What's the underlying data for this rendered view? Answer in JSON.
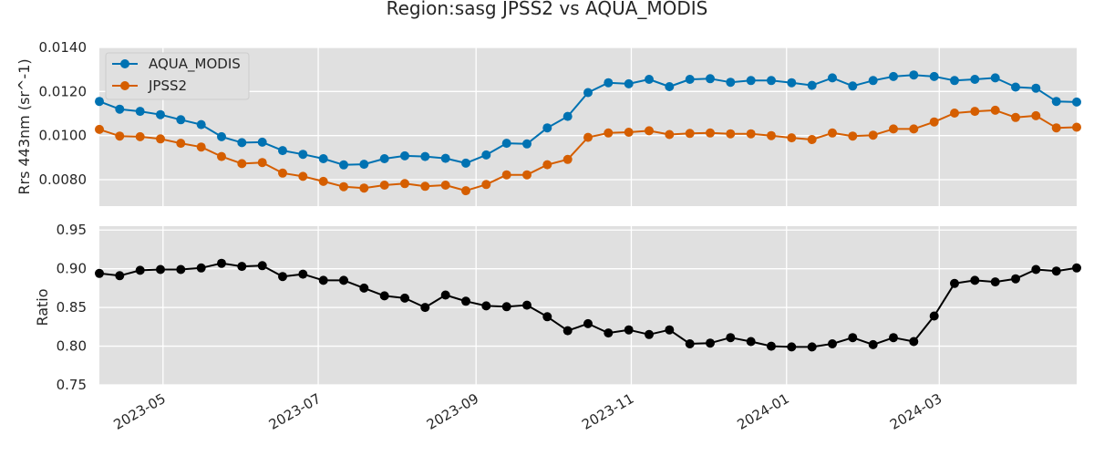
{
  "figure_title": "Region:sasg JPSS2 vs AQUA_MODIS",
  "chart_data": [
    {
      "type": "line",
      "title": "",
      "xlabel": "",
      "ylabel": "Rrs 443nm (sr^-1)",
      "ylim": [
        0.0068,
        0.014
      ],
      "yticks": [
        "0.0080",
        "0.0100",
        "0.0120",
        "0.0140"
      ],
      "grid": true,
      "legend": "top-left",
      "x": [
        "2023-04-06",
        "2023-04-14",
        "2023-04-22",
        "2023-04-30",
        "2023-05-08",
        "2023-05-16",
        "2023-05-24",
        "2023-06-01",
        "2023-06-09",
        "2023-06-17",
        "2023-06-25",
        "2023-07-03",
        "2023-07-11",
        "2023-07-19",
        "2023-07-27",
        "2023-08-04",
        "2023-08-12",
        "2023-08-20",
        "2023-08-28",
        "2023-09-05",
        "2023-09-13",
        "2023-09-21",
        "2023-09-29",
        "2023-10-07",
        "2023-10-15",
        "2023-10-23",
        "2023-10-31",
        "2023-11-08",
        "2023-11-16",
        "2023-11-24",
        "2023-12-02",
        "2023-12-10",
        "2023-12-18",
        "2023-12-26",
        "2024-01-03",
        "2024-01-11",
        "2024-01-19",
        "2024-01-27",
        "2024-02-04",
        "2024-02-12",
        "2024-02-20",
        "2024-02-28",
        "2024-03-07",
        "2024-03-15",
        "2024-03-23",
        "2024-03-31",
        "2024-04-08",
        "2024-04-16",
        "2024-04-24"
      ],
      "series": [
        {
          "name": "AQUA_MODIS",
          "color": "#0072b2",
          "values": [
            0.01155,
            0.0112,
            0.0111,
            0.01095,
            0.01072,
            0.0105,
            0.00995,
            0.00968,
            0.0097,
            0.00932,
            0.00915,
            0.00895,
            0.00867,
            0.0087,
            0.00895,
            0.00908,
            0.00905,
            0.00897,
            0.00875,
            0.00912,
            0.00965,
            0.00962,
            0.01035,
            0.01087,
            0.01195,
            0.0124,
            0.01235,
            0.01255,
            0.01222,
            0.01255,
            0.01258,
            0.01242,
            0.0125,
            0.0125,
            0.0124,
            0.01228,
            0.01262,
            0.01225,
            0.0125,
            0.01268,
            0.01275,
            0.01268,
            0.0125,
            0.01255,
            0.01262,
            0.0122,
            0.01215,
            0.01155,
            0.01152
          ]
        },
        {
          "name": "JPSS2",
          "color": "#d55e00",
          "values": [
            0.01028,
            0.00998,
            0.00995,
            0.00985,
            0.00965,
            0.00948,
            0.00905,
            0.00873,
            0.00878,
            0.0083,
            0.00815,
            0.00792,
            0.00768,
            0.00762,
            0.00775,
            0.00782,
            0.0077,
            0.00775,
            0.0075,
            0.00778,
            0.00822,
            0.00822,
            0.00868,
            0.00892,
            0.00992,
            0.01012,
            0.01015,
            0.01022,
            0.01005,
            0.0101,
            0.01012,
            0.01008,
            0.01008,
            0.01,
            0.0099,
            0.00982,
            0.01012,
            0.00998,
            0.01002,
            0.0103,
            0.0103,
            0.01062,
            0.01102,
            0.0111,
            0.01115,
            0.01082,
            0.0109,
            0.01035,
            0.01038
          ]
        }
      ]
    },
    {
      "type": "line",
      "title": "",
      "xlabel": "",
      "ylabel": "Ratio",
      "ylim": [
        0.75,
        0.955
      ],
      "yticks": [
        "0.75",
        "0.80",
        "0.85",
        "0.90",
        "0.95"
      ],
      "grid": true,
      "x_ticks": [
        "2023-05",
        "2023-07",
        "2023-09",
        "2023-11",
        "2024-01",
        "2024-03"
      ],
      "x": [
        "2023-04-06",
        "2023-04-14",
        "2023-04-22",
        "2023-04-30",
        "2023-05-08",
        "2023-05-16",
        "2023-05-24",
        "2023-06-01",
        "2023-06-09",
        "2023-06-17",
        "2023-06-25",
        "2023-07-03",
        "2023-07-11",
        "2023-07-19",
        "2023-07-27",
        "2023-08-04",
        "2023-08-12",
        "2023-08-20",
        "2023-08-28",
        "2023-09-05",
        "2023-09-13",
        "2023-09-21",
        "2023-09-29",
        "2023-10-07",
        "2023-10-15",
        "2023-10-23",
        "2023-10-31",
        "2023-11-08",
        "2023-11-16",
        "2023-11-24",
        "2023-12-02",
        "2023-12-10",
        "2023-12-18",
        "2023-12-26",
        "2024-01-03",
        "2024-01-11",
        "2024-01-19",
        "2024-01-27",
        "2024-02-04",
        "2024-02-12",
        "2024-02-20",
        "2024-02-28",
        "2024-03-07",
        "2024-03-15",
        "2024-03-23",
        "2024-03-31",
        "2024-04-08",
        "2024-04-16",
        "2024-04-24"
      ],
      "series": [
        {
          "color": "#000000",
          "values": [
            0.894,
            0.891,
            0.898,
            0.899,
            0.899,
            0.901,
            0.907,
            0.903,
            0.904,
            0.89,
            0.893,
            0.885,
            0.885,
            0.875,
            0.865,
            0.862,
            0.85,
            0.866,
            0.858,
            0.852,
            0.851,
            0.853,
            0.838,
            0.82,
            0.829,
            0.817,
            0.821,
            0.815,
            0.821,
            0.803,
            0.804,
            0.811,
            0.806,
            0.8,
            0.799,
            0.799,
            0.803,
            0.811,
            0.802,
            0.811,
            0.806,
            0.839,
            0.881,
            0.885,
            0.883,
            0.887,
            0.899,
            0.897,
            0.901
          ]
        }
      ]
    }
  ]
}
